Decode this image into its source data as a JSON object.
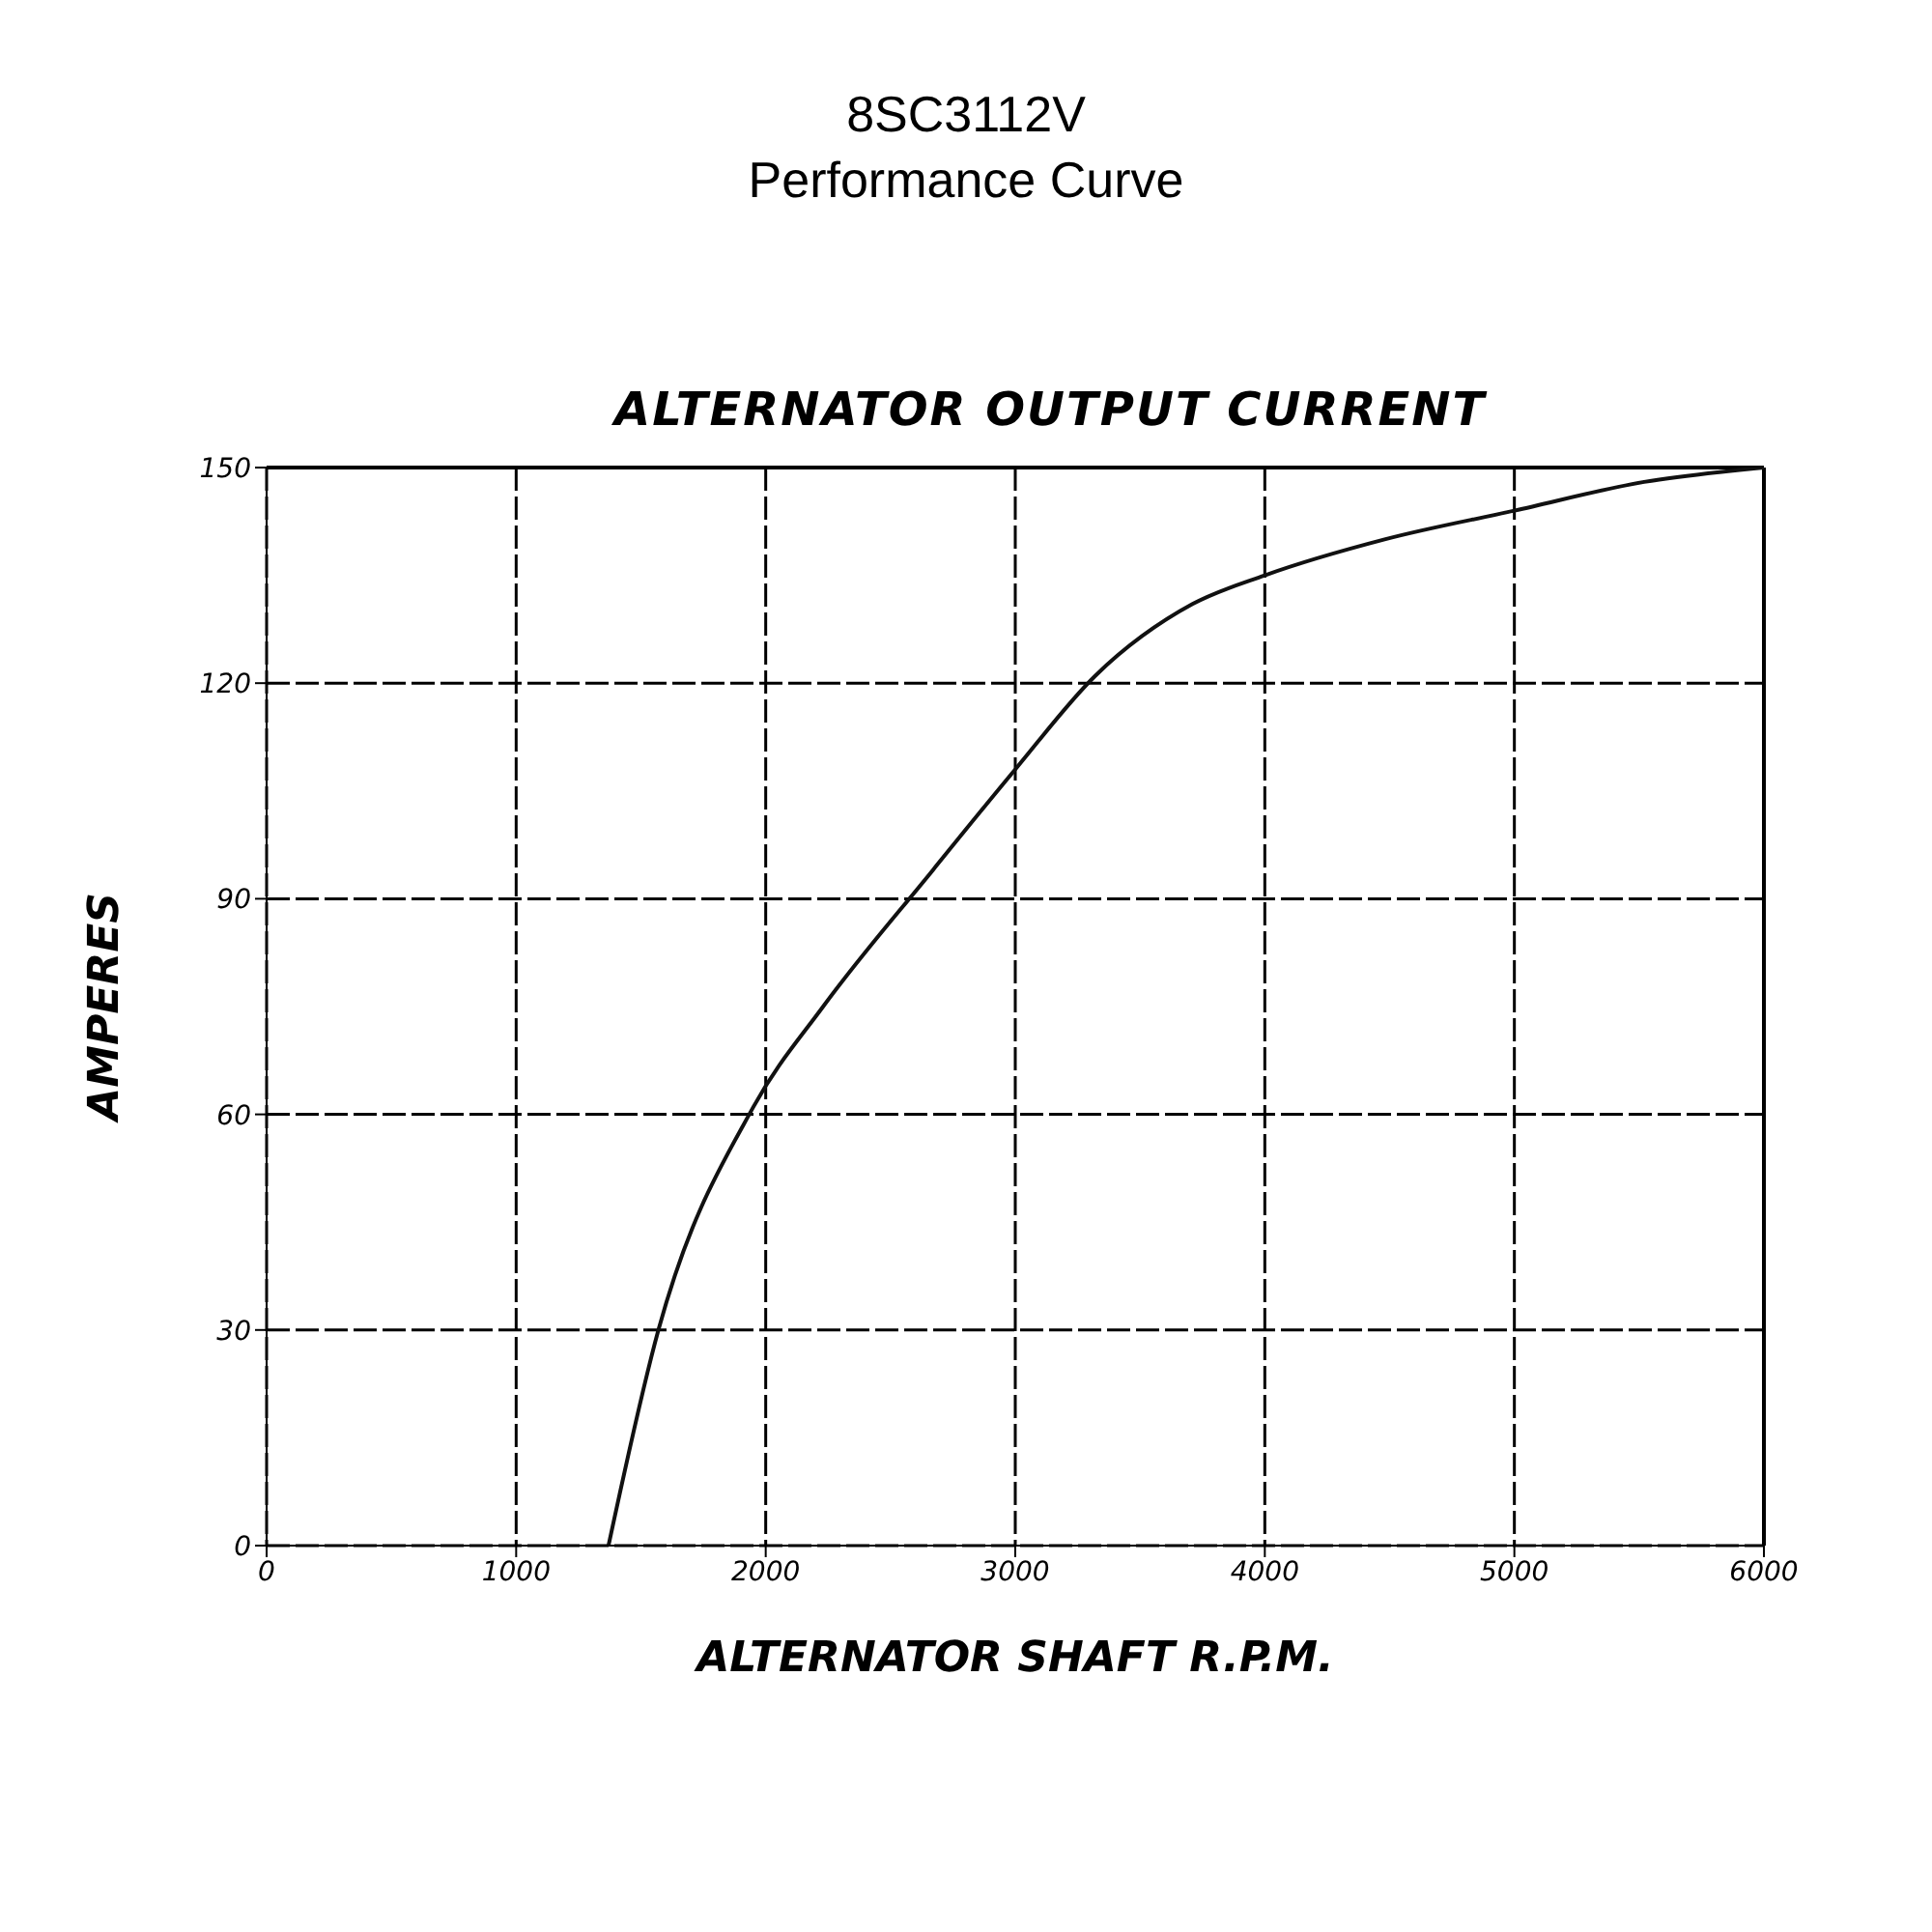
{
  "chart_data": {
    "type": "line",
    "title": "8SC3112V",
    "subtitle": "Performance Curve",
    "annotations": [
      "ALTERNATOR OUTPUT CURRENT"
    ],
    "xlabel": "ALTERNATOR SHAFT R.P.M.",
    "ylabel": "AMPERES",
    "x": [
      1370,
      1570,
      1950,
      2230,
      2670,
      3000,
      3320,
      3710,
      4000,
      4480,
      5000,
      5520,
      6000
    ],
    "series": [
      {
        "color": "#111111",
        "values": [
          0,
          30,
          61,
          75,
          94,
          108,
          121,
          131,
          135,
          140,
          144,
          148,
          150
        ]
      }
    ],
    "xlim": [
      0,
      6000
    ],
    "xticks": [
      0,
      1000,
      2000,
      3000,
      4000,
      5000,
      6000
    ],
    "ylim": [
      0,
      150
    ],
    "yticks": [
      0,
      30,
      60,
      90,
      120,
      150
    ],
    "grid": true,
    "marker": "none",
    "line_style": "solid"
  }
}
